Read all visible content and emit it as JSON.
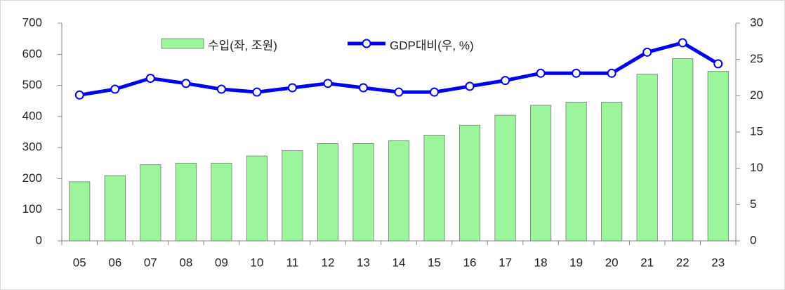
{
  "chart_data": {
    "type": "bar_line",
    "categories": [
      "05",
      "06",
      "07",
      "08",
      "09",
      "10",
      "11",
      "12",
      "13",
      "14",
      "15",
      "16",
      "17",
      "18",
      "19",
      "20",
      "21",
      "22",
      "23"
    ],
    "series": [
      {
        "name": "수입(좌, 조원)",
        "type": "bar",
        "color": "#9cf59c",
        "values": [
          190,
          210,
          245,
          250,
          250,
          273,
          290,
          313,
          313,
          322,
          340,
          372,
          404,
          436,
          446,
          446,
          536,
          586,
          545
        ]
      },
      {
        "name": "GDP대비(우, %)",
        "type": "line",
        "axis": "y2",
        "color": "#0000ee",
        "values": [
          20.1,
          20.9,
          22.4,
          21.7,
          20.9,
          20.5,
          21.1,
          21.7,
          21.1,
          20.5,
          20.5,
          21.3,
          22.1,
          23.1,
          23.1,
          23.1,
          26.0,
          27.3,
          24.4
        ]
      }
    ],
    "ylim": [
      0,
      700
    ],
    "yticks": [
      0,
      100,
      200,
      300,
      400,
      500,
      600,
      700
    ],
    "y2lim": [
      0,
      30
    ],
    "y2ticks": [
      0,
      5,
      10,
      15,
      20,
      25,
      30
    ]
  }
}
